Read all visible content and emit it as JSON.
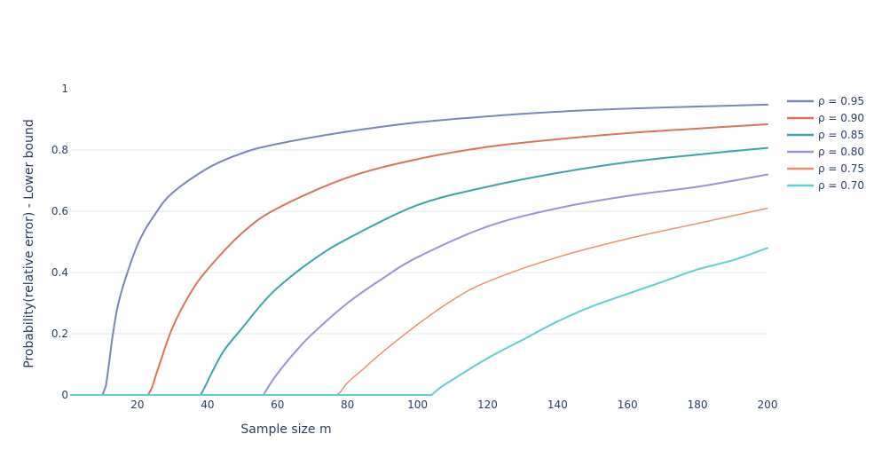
{
  "chart_data": {
    "type": "line",
    "title": "",
    "xlabel": "Sample size m",
    "ylabel": "Probability(relative error) - Lower bound",
    "xlim": [
      1,
      200
    ],
    "ylim": [
      0,
      1
    ],
    "x_ticks": [
      20,
      40,
      60,
      80,
      100,
      120,
      140,
      160,
      180,
      200
    ],
    "x_tick_labels": [
      "20",
      "40",
      "60",
      "80",
      "100",
      "120",
      "140",
      "160",
      "180",
      "200"
    ],
    "y_ticks": [
      0,
      0.2,
      0.4,
      0.6,
      0.8,
      1
    ],
    "y_tick_labels": [
      "0",
      "0.2",
      "0.4",
      "0.6",
      "0.8",
      "1"
    ],
    "grid": true,
    "legend_position": "top-right",
    "x": [
      1,
      10,
      11,
      13,
      15,
      20,
      25,
      30,
      40,
      50,
      60,
      80,
      100,
      120,
      140,
      160,
      180,
      200
    ],
    "series": [
      {
        "name": "ρ = 0.95",
        "color": "#7786b7",
        "width": 2,
        "values": [
          0,
          0,
          0.03,
          0.2,
          0.32,
          0.49,
          0.59,
          0.66,
          0.74,
          0.79,
          0.82,
          0.86,
          0.89,
          0.91,
          0.925,
          0.935,
          0.942,
          0.948
        ]
      },
      {
        "name": "ρ = 0.90",
        "color": "#d9735a",
        "width": 2,
        "x": [
          1,
          23,
          24,
          26,
          30,
          35,
          40,
          50,
          60,
          80,
          100,
          120,
          140,
          160,
          180,
          200
        ],
        "values": [
          0,
          0,
          0.02,
          0.09,
          0.22,
          0.33,
          0.41,
          0.53,
          0.61,
          0.71,
          0.77,
          0.81,
          0.835,
          0.855,
          0.87,
          0.884
        ]
      },
      {
        "name": "ρ = 0.85",
        "color": "#3aa5a8",
        "width": 2,
        "x": [
          1,
          38,
          39,
          42,
          45,
          50,
          55,
          60,
          70,
          80,
          100,
          120,
          140,
          160,
          180,
          200
        ],
        "values": [
          0,
          0,
          0.02,
          0.09,
          0.15,
          0.22,
          0.29,
          0.35,
          0.44,
          0.51,
          0.62,
          0.68,
          0.725,
          0.76,
          0.785,
          0.807
        ]
      },
      {
        "name": "ρ = 0.80",
        "color": "#9d91d8",
        "width": 2,
        "x": [
          1,
          56,
          57,
          60,
          65,
          70,
          80,
          90,
          100,
          120,
          140,
          160,
          180,
          200
        ],
        "values": [
          0,
          0,
          0.02,
          0.07,
          0.14,
          0.2,
          0.3,
          0.38,
          0.45,
          0.55,
          0.61,
          0.65,
          0.68,
          0.72
        ]
      },
      {
        "name": "ρ = 0.75",
        "color": "#ef8f6f",
        "width": 1.5,
        "x": [
          1,
          77,
          78,
          80,
          85,
          90,
          100,
          110,
          120,
          140,
          160,
          180,
          200
        ],
        "values": [
          0,
          0,
          0.01,
          0.04,
          0.09,
          0.14,
          0.23,
          0.31,
          0.37,
          0.45,
          0.51,
          0.56,
          0.61
        ]
      },
      {
        "name": "ρ = 0.70",
        "color": "#5fcfcf",
        "width": 2,
        "x": [
          1,
          104,
          106,
          110,
          120,
          130,
          140,
          150,
          160,
          170,
          180,
          190,
          200
        ],
        "values": [
          0,
          0,
          0.02,
          0.05,
          0.12,
          0.18,
          0.24,
          0.29,
          0.33,
          0.37,
          0.41,
          0.44,
          0.48
        ]
      }
    ]
  }
}
